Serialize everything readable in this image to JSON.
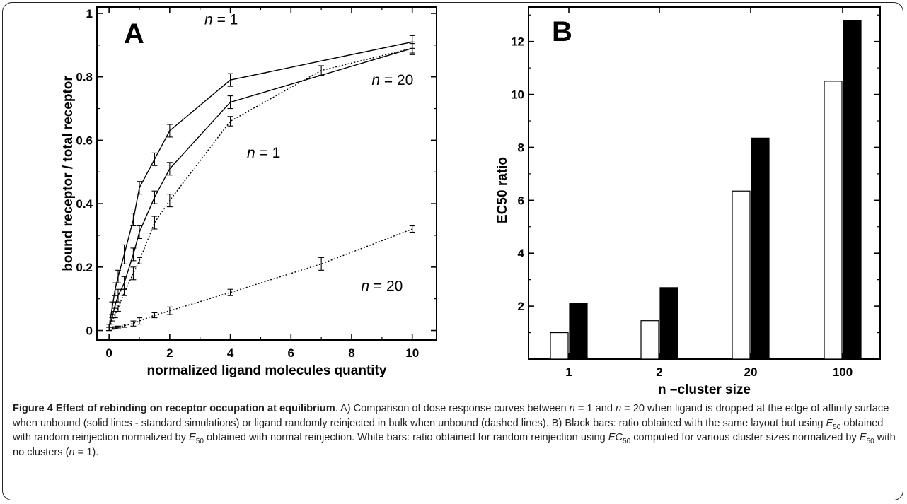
{
  "chart_data": [
    {
      "panel_label": "A",
      "type": "line",
      "xlabel": "normalized ligand molecules quantity",
      "ylabel": "bound receptor / total receptor",
      "xlim": [
        -0.4,
        10.8
      ],
      "ylim": [
        -0.03,
        1.02
      ],
      "xticks": [
        0,
        2,
        4,
        6,
        8,
        10
      ],
      "yticks": [
        0,
        0.2,
        0.4,
        0.6,
        0.8,
        1
      ],
      "ytick_labels": [
        "0",
        "0.2",
        "0.4",
        "0.6",
        "0.8",
        "1"
      ],
      "series": [
        {
          "style": "solid",
          "x": [
            0,
            0.1,
            0.2,
            0.3,
            0.5,
            0.8,
            1.0,
            1.5,
            2.0,
            4.0,
            10.0
          ],
          "y": [
            0.01,
            0.07,
            0.13,
            0.17,
            0.24,
            0.35,
            0.45,
            0.54,
            0.63,
            0.79,
            0.91
          ],
          "err": [
            0.01,
            0.02,
            0.02,
            0.02,
            0.03,
            0.02,
            0.02,
            0.02,
            0.02,
            0.02,
            0.02
          ]
        },
        {
          "style": "solid",
          "x": [
            0,
            0.1,
            0.2,
            0.3,
            0.5,
            0.8,
            1.0,
            1.5,
            2.0,
            4.0,
            10.0
          ],
          "y": [
            0.01,
            0.04,
            0.08,
            0.11,
            0.15,
            0.24,
            0.31,
            0.42,
            0.51,
            0.72,
            0.89
          ],
          "err": [
            0.01,
            0.01,
            0.01,
            0.02,
            0.02,
            0.02,
            0.02,
            0.02,
            0.02,
            0.02,
            0.02
          ]
        },
        {
          "style": "dotted",
          "x": [
            0,
            0.1,
            0.2,
            0.3,
            0.5,
            0.8,
            1.0,
            1.5,
            2.0,
            4.0,
            7.0,
            10.0
          ],
          "y": [
            0.01,
            0.03,
            0.05,
            0.07,
            0.12,
            0.18,
            0.22,
            0.34,
            0.41,
            0.66,
            0.82,
            0.89
          ],
          "err": [
            0.01,
            0.01,
            0.01,
            0.01,
            0.01,
            0.02,
            0.01,
            0.02,
            0.02,
            0.015,
            0.015,
            0.015
          ]
        },
        {
          "style": "dotted",
          "x": [
            0,
            0.1,
            0.2,
            0.3,
            0.5,
            0.8,
            1.0,
            1.5,
            2.0,
            4.0,
            7.0,
            10.0
          ],
          "y": [
            0.005,
            0.007,
            0.009,
            0.011,
            0.015,
            0.022,
            0.03,
            0.048,
            0.062,
            0.12,
            0.21,
            0.32
          ],
          "err": [
            0.005,
            0.003,
            0.003,
            0.003,
            0.005,
            0.008,
            0.01,
            0.008,
            0.012,
            0.01,
            0.02,
            0.01
          ]
        }
      ],
      "annotations": [
        {
          "text": "n = 1",
          "x": 3.7,
          "y": 0.965
        },
        {
          "text": "n = 20",
          "x": 9.35,
          "y": 0.775
        },
        {
          "text": "n = 1",
          "x": 5.1,
          "y": 0.545
        },
        {
          "text": "n = 20",
          "x": 9.0,
          "y": 0.125
        }
      ]
    },
    {
      "panel_label": "B",
      "type": "bar",
      "xlabel": "n –cluster size",
      "ylabel": "EC50 ratio",
      "categories": [
        "1",
        "2",
        "20",
        "100"
      ],
      "ylim": [
        0,
        13.3
      ],
      "yticks": [
        2,
        4,
        6,
        8,
        10,
        12
      ],
      "series": [
        {
          "fill": "#ffffff",
          "values": [
            1.0,
            1.45,
            6.35,
            10.5
          ]
        },
        {
          "fill": "#000000",
          "values": [
            2.1,
            2.7,
            8.35,
            12.8
          ]
        }
      ]
    }
  ],
  "caption": {
    "title": "Figure 4 Effect of rebinding on receptor occupation at equilibrium",
    "segments": [
      {
        "t": ". A) Comparison of dose response curves between "
      },
      {
        "t": "n",
        "i": true
      },
      {
        "t": " = 1 and "
      },
      {
        "t": "n",
        "i": true
      },
      {
        "t": " = 20 when ligand is dropped at the edge of affinity surface when unbound (solid lines - standard simulations) or ligand randomly reinjected in bulk when unbound (dashed lines). B) Black bars: ratio obtained with the same layout but using "
      },
      {
        "t": "E",
        "i": true
      },
      {
        "t": "50",
        "sub": true
      },
      {
        "t": " obtained with random reinjection normalized by "
      },
      {
        "t": "E",
        "i": true
      },
      {
        "t": "50",
        "sub": true
      },
      {
        "t": " obtained with normal reinjection. White bars: ratio obtained for random reinjection using "
      },
      {
        "t": "EC",
        "i": true
      },
      {
        "t": "50",
        "sub": true
      },
      {
        "t": " computed for various cluster sizes normalized by "
      },
      {
        "t": "E",
        "i": true
      },
      {
        "t": "50",
        "sub": true
      },
      {
        "t": " with no clusters ("
      },
      {
        "t": "n",
        "i": true
      },
      {
        "t": " = 1)."
      }
    ]
  }
}
